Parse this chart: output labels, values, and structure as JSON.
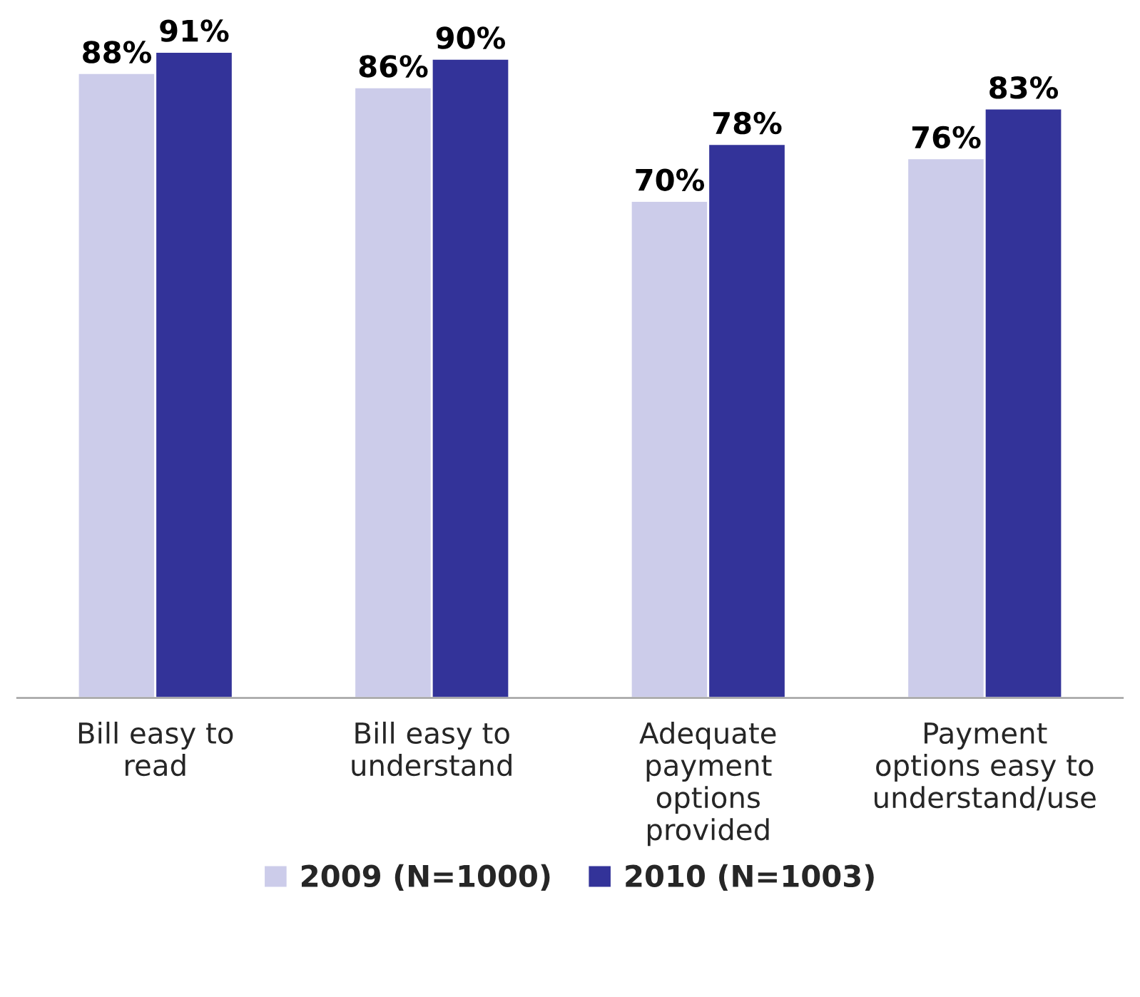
{
  "chart_data": {
    "type": "bar",
    "categories": [
      "Bill easy to\nread",
      "Bill easy to\nunderstand",
      "Adequate\npayment\noptions\nprovided",
      "Payment\noptions easy to\nunderstand/use"
    ],
    "series": [
      {
        "name": "2009 (N=1000)",
        "color": "#ccccea",
        "values": [
          88,
          86,
          70,
          76
        ],
        "value_labels": [
          "88%",
          "86%",
          "70%",
          "76%"
        ]
      },
      {
        "name": "2010 (N=1003)",
        "color": "#333399",
        "values": [
          91,
          90,
          78,
          83
        ],
        "value_labels": [
          "91%",
          "90%",
          "78%",
          "83%"
        ]
      }
    ],
    "tick_labels": "x",
    "legend": "bottom",
    "grid": false
  }
}
